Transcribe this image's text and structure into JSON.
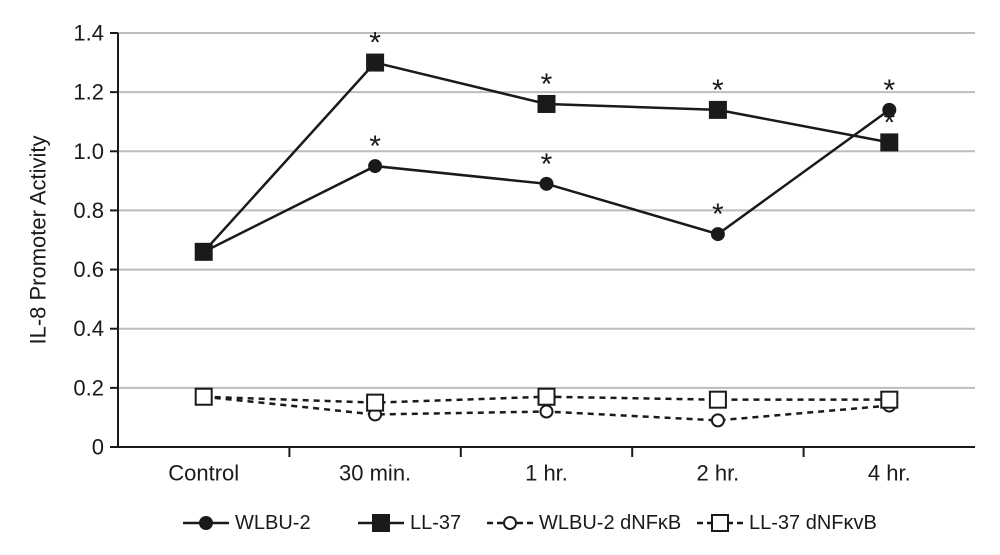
{
  "chart_data": {
    "type": "line",
    "categories": [
      "Control",
      "30 min.",
      "1 hr.",
      "2 hr.",
      "4 hr."
    ],
    "ylabel": "IL-8 Promoter Activity",
    "ylim": [
      0,
      1.4
    ],
    "yticks": [
      {
        "value": 0,
        "label": "0"
      },
      {
        "value": 0.2,
        "label": "0.2"
      },
      {
        "value": 0.4,
        "label": "0.4"
      },
      {
        "value": 0.6,
        "label": "0.6"
      },
      {
        "value": 0.8,
        "label": "0.8"
      },
      {
        "value": 1.0,
        "label": "1.0"
      },
      {
        "value": 1.2,
        "label": "1.2"
      },
      {
        "value": 1.4,
        "label": "1.4"
      }
    ],
    "grid": true,
    "legend_position": "bottom",
    "series": [
      {
        "name": "WLBU-2",
        "values": [
          0.66,
          0.95,
          0.89,
          0.72,
          1.14
        ],
        "marker": "circle",
        "filled": true,
        "dashed": false,
        "significant": [
          false,
          true,
          true,
          true,
          true
        ]
      },
      {
        "name": "LL-37",
        "values": [
          0.66,
          1.3,
          1.16,
          1.14,
          1.03
        ],
        "marker": "square",
        "filled": true,
        "dashed": false,
        "significant": [
          false,
          true,
          true,
          true,
          true
        ]
      },
      {
        "name": "WLBU-2 dNFκB",
        "values": [
          0.17,
          0.11,
          0.12,
          0.09,
          0.14
        ],
        "marker": "circle",
        "filled": false,
        "dashed": true,
        "significant": [
          false,
          false,
          false,
          false,
          false
        ]
      },
      {
        "name": "LL-37 dNFκvB",
        "values": [
          0.17,
          0.15,
          0.17,
          0.16,
          0.16
        ],
        "marker": "square",
        "filled": false,
        "dashed": true,
        "significant": [
          false,
          false,
          false,
          false,
          false
        ]
      }
    ],
    "significance_marker": "*",
    "colors": {
      "ink": "#1a1a1a",
      "grid": "#bdbdbd"
    }
  }
}
